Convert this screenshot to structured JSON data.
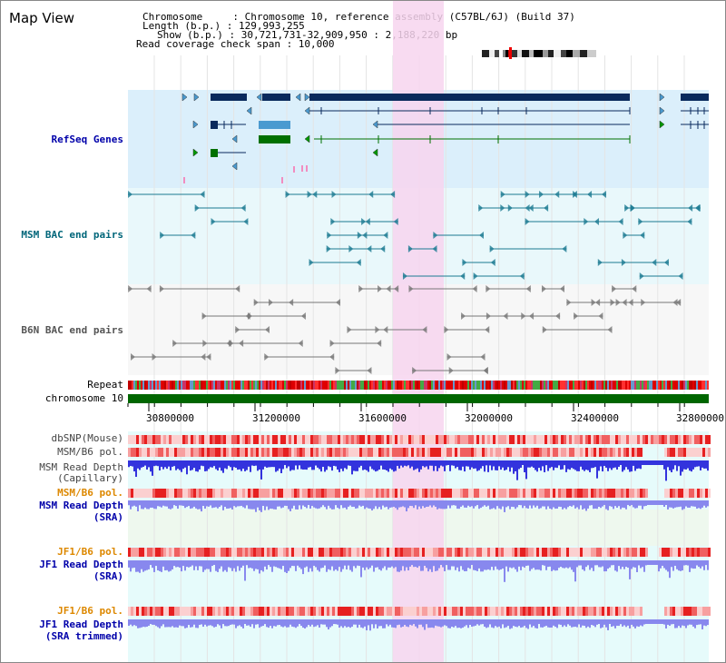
{
  "window_title": "Map View",
  "header": {
    "line1": "Chromosome     : Chromosome 10, reference assembly (C57BL/6J) (Build 37)",
    "line2": "Length (b.p.) : 129,993,255",
    "line3": "Show (b.p.) : 30,721,731-32,909,950 : 2,188,220 bp",
    "line4": "Read coverage check span : 10,000"
  },
  "tracks": {
    "refseq": "RefSeq Genes",
    "msm_bac": "MSM BAC end pairs",
    "b6n_bac": "B6N BAC end pairs",
    "repeat": "Repeat",
    "chromosome": "chromosome 10",
    "dbsnp": "dbSNP(Mouse)",
    "msm_pol1": "MSM/B6 pol.",
    "msm_depth_cap_1": "MSM Read Depth",
    "msm_depth_cap_2": "(Capillary)",
    "msm_pol2": "MSM/B6 pol.",
    "msm_depth_sra_1": "MSM Read Depth",
    "msm_depth_sra_2": "(SRA)",
    "jf1_pol1": "JF1/B6 pol.",
    "jf1_depth_sra_1": "JF1 Read Depth",
    "jf1_depth_sra_2": "(SRA)",
    "jf1_pol2": "JF1/B6 pol.",
    "jf1_depth_trim_1": "JF1 Read Depth",
    "jf1_depth_trim_2": "(SRA trimmed)"
  },
  "axis_ticks": [
    "30800000",
    "31200000",
    "31600000",
    "32000000",
    "32400000",
    "32800000"
  ],
  "colors": {
    "refseq_bg": "#dbeffb",
    "bac_bg": "#e9f8fb",
    "highlight": "#f7d5ef",
    "gene_dark": "#0a2a5c",
    "gene_light": "#4a9ad0",
    "gene_green": "#007000",
    "bac_teal": "#1b7a92",
    "bac_grey": "#777777",
    "chrom_green": "#006600",
    "label_blue": "#0000aa",
    "label_orange": "#dd8800",
    "label_teal": "#00667a",
    "label_grey": "#555555",
    "depth_blue": "#3333dd",
    "depth_light": "#8888ee"
  }
}
